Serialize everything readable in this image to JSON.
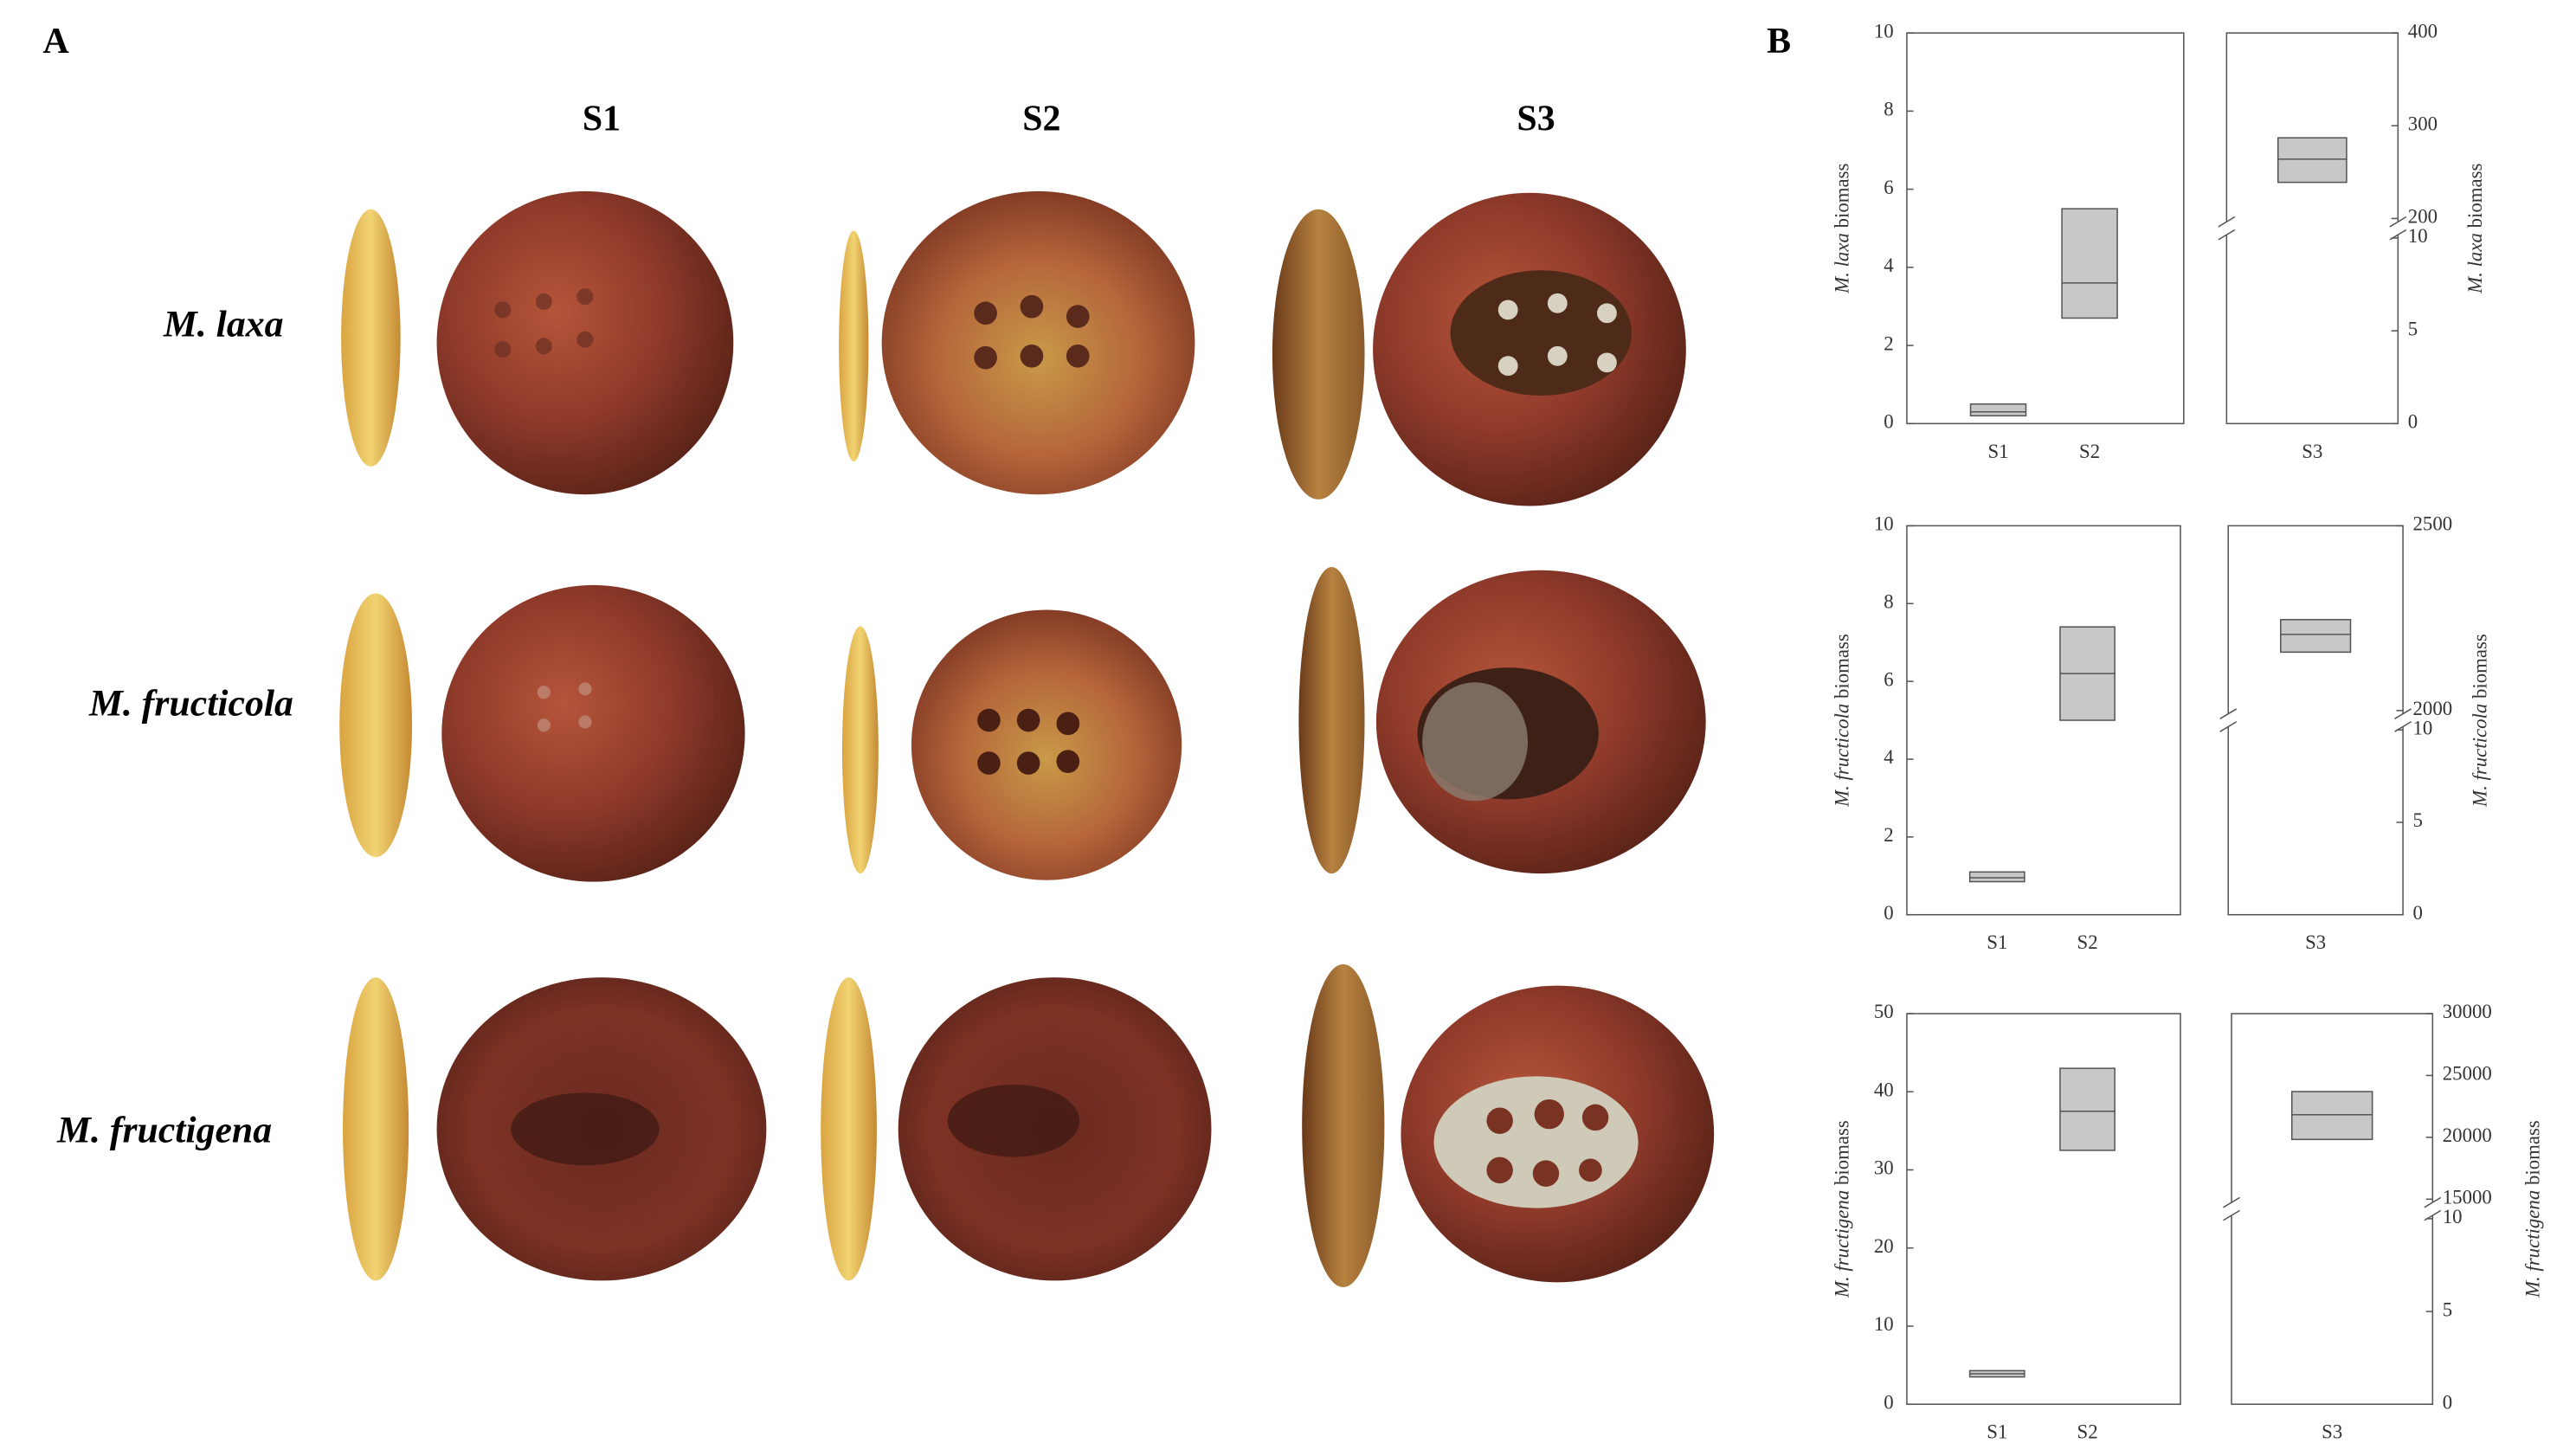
{
  "panel_a": {
    "label": "A",
    "columns": [
      "S1",
      "S2",
      "S3"
    ],
    "rows": [
      "M. laxa",
      "M. fructicola",
      "M. fructigena"
    ]
  },
  "panel_b_label": "B",
  "chart_data": [
    {
      "type": "box",
      "ylabel_species": "M. laxa",
      "ylabel_unit": "biomass",
      "categories": [
        "S1",
        "S2",
        "S3"
      ],
      "box_axis": [
        "y",
        "y",
        "y2"
      ],
      "q1": [
        0.2,
        2.7,
        239
      ],
      "median": [
        0.3,
        3.6,
        264
      ],
      "q3": [
        0.5,
        5.5,
        287
      ],
      "color": "#c8c8c8",
      "ylim": [
        0,
        10
      ],
      "yticks": [
        0,
        2,
        4,
        6,
        8,
        10
      ],
      "y2lim": [
        200,
        400
      ],
      "y2ticks": [
        200,
        300,
        400
      ],
      "y2_lower_lim": [
        0,
        10
      ],
      "y2_lower_ticks": [
        0,
        5,
        10
      ]
    },
    {
      "type": "box",
      "ylabel_species": "M. fructicola",
      "ylabel_unit": "biomass",
      "categories": [
        "S1",
        "S2",
        "S3"
      ],
      "box_axis": [
        "y",
        "y",
        "y2"
      ],
      "q1": [
        0.85,
        5.0,
        2158
      ],
      "median": [
        0.95,
        6.2,
        2206
      ],
      "q3": [
        1.1,
        7.4,
        2246
      ],
      "color": "#c8c8c8",
      "ylim": [
        0,
        10
      ],
      "yticks": [
        0,
        2,
        4,
        6,
        8,
        10
      ],
      "y2lim": [
        2000,
        2500
      ],
      "y2ticks": [
        2000,
        2500
      ],
      "y2_lower_lim": [
        0,
        10
      ],
      "y2_lower_ticks": [
        0,
        5,
        10
      ]
    },
    {
      "type": "box",
      "ylabel_species": "M. fructigena",
      "ylabel_unit": "biomass",
      "categories": [
        "S1",
        "S2",
        "S3"
      ],
      "box_axis": [
        "y",
        "y",
        "y2"
      ],
      "q1": [
        3.5,
        32.5,
        19830
      ],
      "median": [
        3.9,
        37.5,
        21830
      ],
      "q3": [
        4.3,
        43,
        23700
      ],
      "color": "#c8c8c8",
      "ylim": [
        0,
        50
      ],
      "yticks": [
        0,
        10,
        20,
        30,
        40,
        50
      ],
      "y2lim": [
        15000,
        30000
      ],
      "y2ticks": [
        15000,
        20000,
        25000,
        30000
      ],
      "y2_lower_lim": [
        0,
        10
      ],
      "y2_lower_ticks": [
        0,
        5,
        10
      ]
    }
  ]
}
